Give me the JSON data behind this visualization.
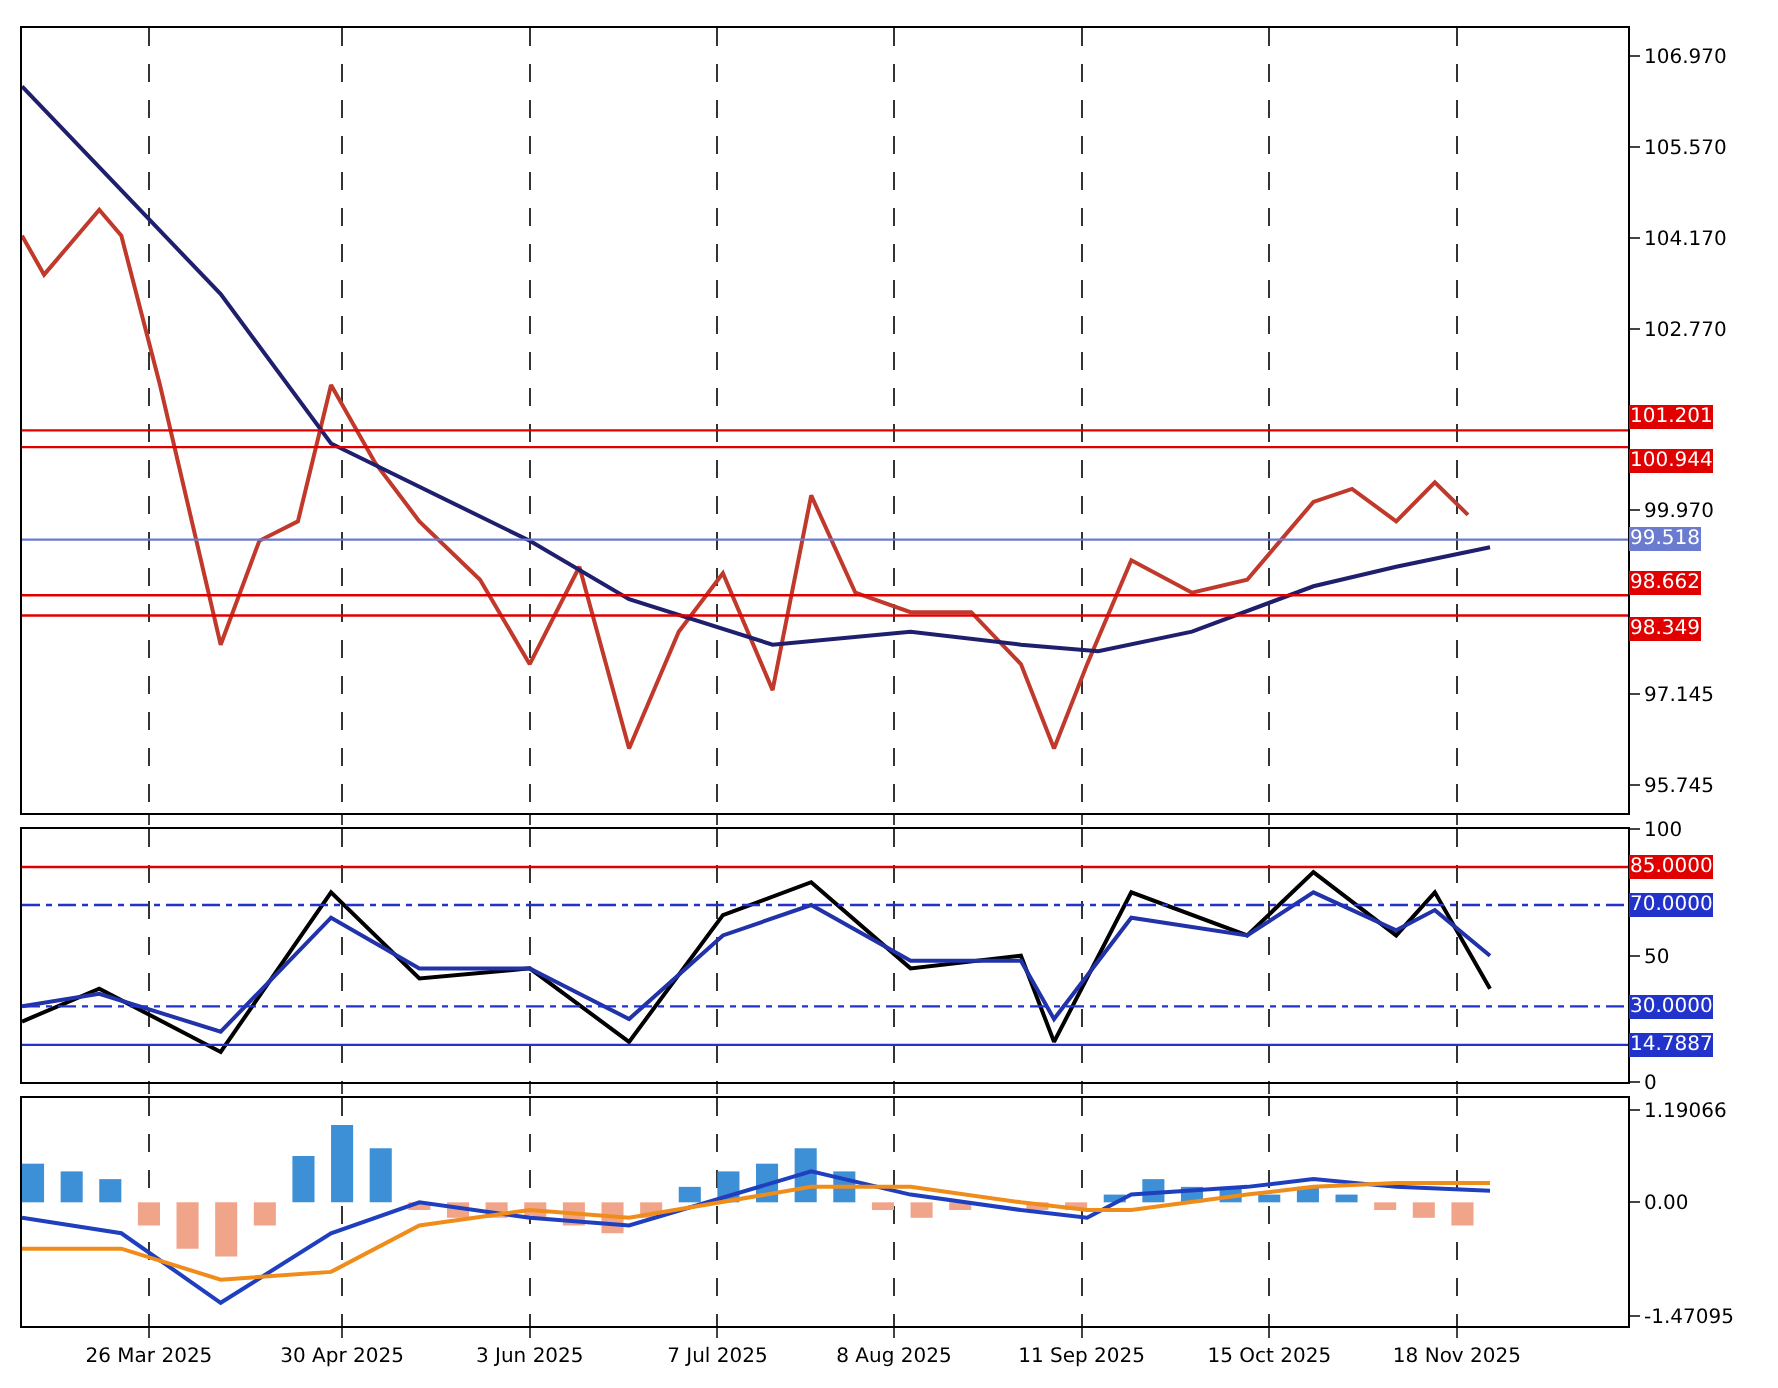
{
  "chart_data": [
    {
      "type": "line",
      "xlim": [
        "2025-03-03",
        "2025-12-19"
      ],
      "ylim": [
        95.3,
        107.4
      ],
      "yticks": [
        95.745,
        97.145,
        {
          "value": 99.97,
          "label": "99.970"
        },
        {
          "value": 102.77,
          "label": "102.770"
        },
        {
          "value": 104.17,
          "label": "104.170"
        },
        {
          "value": 105.57,
          "label": "105.570"
        },
        {
          "value": 106.97,
          "label": "106.970"
        }
      ],
      "xticks": [
        {
          "value": "2025-03-26",
          "label": null
        },
        {
          "value": "2025-04-30",
          "label": null
        },
        {
          "value": "2025-06-03",
          "label": null
        },
        {
          "value": "2025-07-07",
          "label": null
        },
        {
          "value": "2025-08-08",
          "label": null
        },
        {
          "value": "2025-09-11",
          "label": null
        },
        {
          "value": "2025-10-15",
          "label": null
        },
        {
          "value": "2025-11-18",
          "label": null
        }
      ],
      "tick_labels": "y",
      "grid": "x",
      "series": [
        {
          "color": "#c0392b",
          "x": [
            "2025-03-03",
            "2025-03-07",
            "2025-03-17",
            "2025-03-21",
            "2025-03-28",
            "2025-04-08",
            "2025-04-15",
            "2025-04-22",
            "2025-04-28",
            "2025-05-06",
            "2025-05-14",
            "2025-05-25",
            "2025-06-03",
            "2025-06-12",
            "2025-06-21",
            "2025-06-30",
            "2025-07-08",
            "2025-07-17",
            "2025-07-24",
            "2025-08-01",
            "2025-08-11",
            "2025-08-22",
            "2025-08-31",
            "2025-09-06",
            "2025-09-12",
            "2025-09-20",
            "2025-10-01",
            "2025-10-11",
            "2025-10-23",
            "2025-10-30",
            "2025-11-07",
            "2025-11-14",
            "2025-11-20"
          ],
          "values": [
            104.2,
            103.6,
            104.6,
            104.2,
            101.9,
            97.9,
            99.5,
            99.8,
            101.9,
            100.7,
            99.8,
            98.9,
            97.6,
            99.1,
            96.3,
            98.1,
            99.0,
            97.2,
            100.2,
            98.7,
            98.4,
            98.4,
            97.6,
            96.3,
            97.6,
            99.2,
            98.7,
            98.9,
            100.1,
            100.3,
            99.8,
            100.4,
            99.9
          ]
        },
        {
          "color": "#1f1f6e",
          "x": [
            "2025-03-03",
            "2025-04-08",
            "2025-04-28",
            "2025-06-03",
            "2025-06-21",
            "2025-07-17",
            "2025-08-11",
            "2025-08-31",
            "2025-09-14",
            "2025-10-01",
            "2025-10-23",
            "2025-11-07",
            "2025-11-24"
          ],
          "values": [
            106.5,
            103.3,
            101.0,
            99.5,
            98.6,
            97.9,
            98.1,
            97.9,
            97.8,
            98.1,
            98.8,
            99.1,
            99.4
          ]
        }
      ],
      "ref_lines": [
        {
          "axis": "y",
          "value": 101.201,
          "label": "101.201",
          "color": "#e00000"
        },
        {
          "axis": "y",
          "value": 100.944,
          "label": "100.944",
          "color": "#e00000"
        },
        {
          "axis": "y",
          "value": 99.518,
          "label": "99.518",
          "color": "#6a7bd0"
        },
        {
          "axis": "y",
          "value": 98.662,
          "label": "98.662",
          "color": "#e00000"
        },
        {
          "axis": "y",
          "value": 98.349,
          "label": "98.349",
          "color": "#e00000"
        }
      ]
    },
    {
      "type": "line",
      "xlim": [
        "2025-03-03",
        "2025-12-19"
      ],
      "ylim": [
        0,
        100
      ],
      "yticks": [
        0,
        50,
        100
      ],
      "xticks": [
        {
          "value": "2025-03-26",
          "label": null
        },
        {
          "value": "2025-04-30",
          "label": null
        },
        {
          "value": "2025-06-03",
          "label": null
        },
        {
          "value": "2025-07-07",
          "label": null
        },
        {
          "value": "2025-08-08",
          "label": null
        },
        {
          "value": "2025-09-11",
          "label": null
        },
        {
          "value": "2025-10-15",
          "label": null
        },
        {
          "value": "2025-11-18",
          "label": null
        }
      ],
      "tick_labels": "y",
      "grid": "x",
      "series": [
        {
          "color": "#000000",
          "x": [
            "2025-03-03",
            "2025-03-17",
            "2025-04-08",
            "2025-04-28",
            "2025-05-14",
            "2025-06-03",
            "2025-06-21",
            "2025-07-08",
            "2025-07-24",
            "2025-08-11",
            "2025-08-31",
            "2025-09-06",
            "2025-09-20",
            "2025-10-11",
            "2025-10-23",
            "2025-11-07",
            "2025-11-14",
            "2025-11-24"
          ],
          "values": [
            24,
            37,
            12,
            75,
            41,
            45,
            16,
            66,
            79,
            45,
            50,
            16,
            75,
            58,
            83,
            58,
            75,
            37
          ]
        },
        {
          "color": "#2233aa",
          "x": [
            "2025-03-03",
            "2025-03-17",
            "2025-04-08",
            "2025-04-28",
            "2025-05-14",
            "2025-06-03",
            "2025-06-21",
            "2025-07-08",
            "2025-07-24",
            "2025-08-11",
            "2025-08-31",
            "2025-09-06",
            "2025-09-20",
            "2025-10-11",
            "2025-10-23",
            "2025-11-07",
            "2025-11-14",
            "2025-11-24"
          ],
          "values": [
            30,
            35,
            20,
            65,
            45,
            45,
            25,
            58,
            70,
            48,
            48,
            25,
            65,
            58,
            75,
            60,
            68,
            50
          ]
        }
      ],
      "ref_lines": [
        {
          "axis": "y",
          "value": 85,
          "label": "85.0000",
          "color": "#e00000"
        },
        {
          "axis": "y",
          "value": 70,
          "label": "70.0000",
          "color": "#2233cc",
          "line_style": "dashdot"
        },
        {
          "axis": "y",
          "value": 30,
          "label": "30.0000",
          "color": "#2233cc",
          "line_style": "dashdot"
        },
        {
          "axis": "y",
          "value": 14.7887,
          "label": "14.7887",
          "color": "#2233cc"
        }
      ]
    },
    {
      "type": "bar",
      "xlim": [
        "2025-03-03",
        "2025-12-19"
      ],
      "ylim": [
        -1.6,
        1.35
      ],
      "yticks": [
        {
          "value": 1.19066,
          "label": "1.19066"
        },
        {
          "value": 0,
          "label": "0.00"
        },
        {
          "value": -1.47095,
          "label": "-1.47095"
        }
      ],
      "xticks": [
        {
          "value": "2025-03-26",
          "label": "26 Mar 2025"
        },
        {
          "value": "2025-04-30",
          "label": "30 Apr 2025"
        },
        {
          "value": "2025-06-03",
          "label": "3 Jun 2025"
        },
        {
          "value": "2025-07-07",
          "label": "7 Jul 2025"
        },
        {
          "value": "2025-08-08",
          "label": "8 Aug 2025"
        },
        {
          "value": "2025-09-11",
          "label": "11 Sep 2025"
        },
        {
          "value": "2025-10-15",
          "label": "15 Oct 2025"
        },
        {
          "value": "2025-11-18",
          "label": "18 Nov 2025"
        }
      ],
      "grid": "x",
      "series": [
        {
          "x": [
            "2025-03-05",
            "2025-03-12",
            "2025-03-19",
            "2025-03-26",
            "2025-04-02",
            "2025-04-09",
            "2025-04-16",
            "2025-04-23",
            "2025-04-30",
            "2025-05-07",
            "2025-05-14",
            "2025-05-21",
            "2025-05-28",
            "2025-06-04",
            "2025-06-11",
            "2025-06-18",
            "2025-06-25",
            "2025-07-02",
            "2025-07-09",
            "2025-07-16",
            "2025-07-23",
            "2025-07-30",
            "2025-08-06",
            "2025-08-13",
            "2025-08-20",
            "2025-08-27",
            "2025-09-03",
            "2025-09-10",
            "2025-09-17",
            "2025-09-24",
            "2025-10-01",
            "2025-10-08",
            "2025-10-15",
            "2025-10-22",
            "2025-10-29",
            "2025-11-05",
            "2025-11-12",
            "2025-11-19"
          ],
          "values": [
            0.5,
            0.4,
            0.3,
            -0.3,
            -0.6,
            -0.7,
            -0.3,
            0.6,
            1.0,
            0.7,
            -0.1,
            -0.2,
            -0.2,
            -0.2,
            -0.3,
            -0.4,
            -0.2,
            0.2,
            0.4,
            0.5,
            0.7,
            0.4,
            -0.1,
            -0.2,
            -0.1,
            null,
            -0.1,
            -0.1,
            0.1,
            0.3,
            0.2,
            0.2,
            0.1,
            0.2,
            0.1,
            -0.1,
            -0.2,
            -0.3
          ],
          "colors": [
            "#3d8fd6",
            "#3d8fd6",
            "#3d8fd6",
            "#f0a58a",
            "#f0a58a",
            "#f0a58a",
            "#f0a58a",
            "#3d8fd6",
            "#3d8fd6",
            "#3d8fd6",
            "#f0a58a",
            "#f0a58a",
            "#f0a58a",
            "#f0a58a",
            "#f0a58a",
            "#f0a58a",
            "#f0a58a",
            "#3d8fd6",
            "#3d8fd6",
            "#3d8fd6",
            "#3d8fd6",
            "#3d8fd6",
            "#f0a58a",
            "#f0a58a",
            "#f0a58a",
            "#f0a58a",
            "#f0a58a",
            "#f0a58a",
            "#3d8fd6",
            "#3d8fd6",
            "#3d8fd6",
            "#3d8fd6",
            "#3d8fd6",
            "#3d8fd6",
            "#3d8fd6",
            "#f0a58a",
            "#f0a58a",
            "#f0a58a"
          ]
        },
        {
          "type": "line",
          "color": "#1f3fbf",
          "x": [
            "2025-03-03",
            "2025-03-21",
            "2025-04-08",
            "2025-04-28",
            "2025-05-14",
            "2025-06-03",
            "2025-06-21",
            "2025-07-24",
            "2025-08-11",
            "2025-08-31",
            "2025-09-12",
            "2025-09-20",
            "2025-10-11",
            "2025-10-23",
            "2025-11-07",
            "2025-11-24"
          ],
          "values": [
            -0.2,
            -0.4,
            -1.3,
            -0.4,
            0.0,
            -0.2,
            -0.3,
            0.4,
            0.1,
            -0.1,
            -0.2,
            0.1,
            0.2,
            0.3,
            0.2,
            0.15
          ]
        },
        {
          "type": "line",
          "color": "#f08c1a",
          "x": [
            "2025-03-03",
            "2025-03-21",
            "2025-04-08",
            "2025-04-28",
            "2025-05-14",
            "2025-06-03",
            "2025-06-21",
            "2025-07-24",
            "2025-08-11",
            "2025-08-31",
            "2025-09-12",
            "2025-09-20",
            "2025-10-11",
            "2025-10-23",
            "2025-11-07",
            "2025-11-24"
          ],
          "values": [
            -0.6,
            -0.6,
            -1.0,
            -0.9,
            -0.3,
            -0.1,
            -0.2,
            0.2,
            0.2,
            0.0,
            -0.1,
            -0.1,
            0.1,
            0.2,
            0.25,
            0.25
          ]
        }
      ]
    }
  ]
}
